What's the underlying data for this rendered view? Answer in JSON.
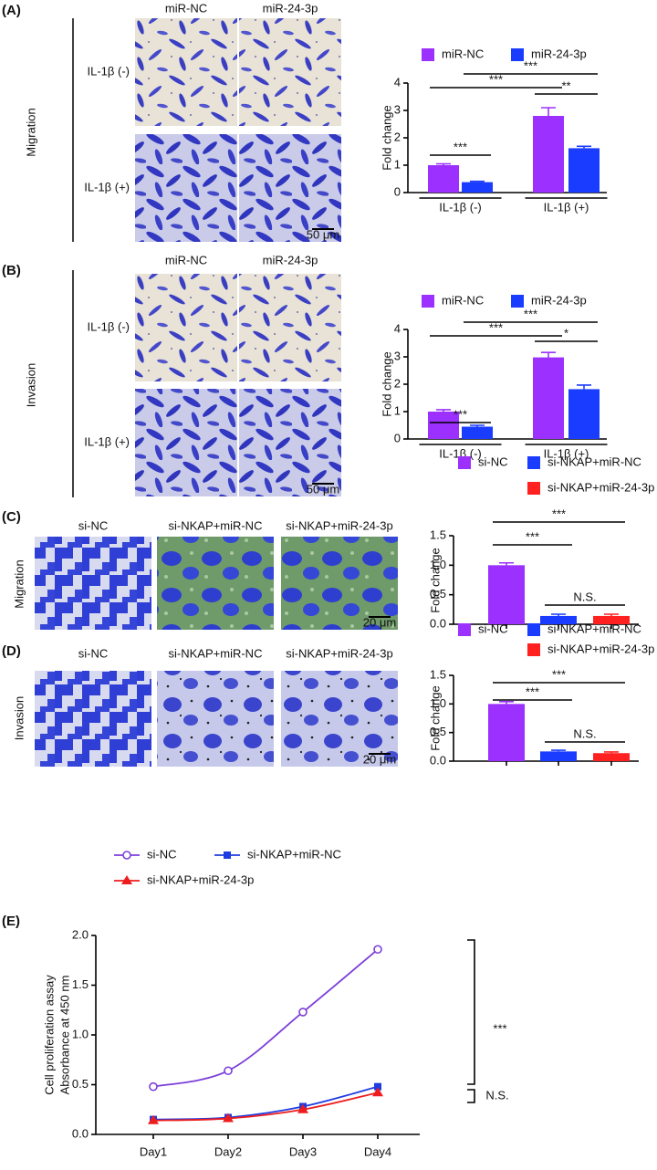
{
  "image_panels": [
    {
      "label": "(A)",
      "side_label": "Migration",
      "columns": [
        "miR-NC",
        "miR-24-3p"
      ],
      "rows": [
        "IL-1β (-)",
        "IL-1β (+)"
      ],
      "scale_bar": "50 μm"
    },
    {
      "label": "(B)",
      "side_label": "Invasion",
      "columns": [
        "miR-NC",
        "miR-24-3p"
      ],
      "rows": [
        "IL-1β (-)",
        "IL-1β (+)"
      ],
      "scale_bar": "50 μm"
    },
    {
      "label": "(C)",
      "side_label": "Migration",
      "columns": [
        "si-NC",
        "si-NKAP+miR-NC",
        "si-NKAP+miR-24-3p"
      ],
      "scale_bar": "20 μm"
    },
    {
      "label": "(D)",
      "side_label": "Invasion",
      "columns": [
        "si-NC",
        "si-NKAP+miR-NC",
        "si-NKAP+miR-24-3p"
      ],
      "scale_bar": "20 μm"
    }
  ],
  "chart_data": [
    {
      "type": "bar",
      "ylabel": "Fold change",
      "categories": [
        "IL-1β (-)",
        "IL-1β (+)"
      ],
      "series": [
        {
          "name": "miR-NC",
          "color": "#9b30ff",
          "values": [
            1.0,
            2.8
          ],
          "errors": [
            0.05,
            0.3
          ]
        },
        {
          "name": "miR-24-3p",
          "color": "#1a3cff",
          "values": [
            0.38,
            1.62
          ],
          "errors": [
            0.03,
            0.07
          ]
        }
      ],
      "ylim": [
        0,
        4
      ],
      "yticks": [
        0,
        1,
        2,
        3,
        4
      ],
      "annotations": [
        "***",
        "***",
        "***",
        "**"
      ]
    },
    {
      "type": "bar",
      "ylabel": "Fold change",
      "categories": [
        "IL-1β (-)",
        "IL-1β (+)"
      ],
      "series": [
        {
          "name": "miR-NC",
          "color": "#9b30ff",
          "values": [
            1.0,
            2.98
          ],
          "errors": [
            0.07,
            0.18
          ]
        },
        {
          "name": "miR-24-3p",
          "color": "#1a3cff",
          "values": [
            0.45,
            1.82
          ],
          "errors": [
            0.05,
            0.15
          ]
        }
      ],
      "ylim": [
        0,
        4
      ],
      "yticks": [
        0,
        1,
        2,
        3,
        4
      ],
      "annotations": [
        "***",
        "***",
        "***",
        "*"
      ]
    },
    {
      "type": "bar",
      "ylabel": "Fold change",
      "categories": [
        null
      ],
      "series": [
        {
          "name": "si-NC",
          "color": "#9b30ff",
          "values": [
            1.0
          ],
          "errors": [
            0.04
          ]
        },
        {
          "name": "si-NKAP+miR-NC",
          "color": "#1a3cff",
          "values": [
            0.14
          ],
          "errors": [
            0.03
          ]
        },
        {
          "name": "si-NKAP+miR-24-3p",
          "color": "#ff2020",
          "values": [
            0.14
          ],
          "errors": [
            0.03
          ]
        }
      ],
      "ylim": [
        0,
        1.5
      ],
      "yticks": [
        {
          "value": 0,
          "label": "0.0"
        },
        0.5,
        {
          "value": 1,
          "label": "1.0"
        },
        1.5
      ],
      "annotations": [
        "***",
        "***",
        "N.S."
      ]
    },
    {
      "type": "bar",
      "ylabel": "Fold change",
      "categories": [
        null
      ],
      "series": [
        {
          "name": "si-NC",
          "color": "#9b30ff",
          "values": [
            1.0
          ],
          "errors": [
            0.04
          ]
        },
        {
          "name": "si-NKAP+miR-NC",
          "color": "#1a3cff",
          "values": [
            0.17
          ],
          "errors": [
            0.02
          ]
        },
        {
          "name": "si-NKAP+miR-24-3p",
          "color": "#ff2020",
          "values": [
            0.14
          ],
          "errors": [
            0.02
          ]
        }
      ],
      "ylim": [
        0,
        1.5
      ],
      "yticks": [
        {
          "value": 0,
          "label": "0.0"
        },
        0.5,
        {
          "value": 1,
          "label": "1.0"
        },
        1.5
      ],
      "annotations": [
        "***",
        "***",
        "N.S."
      ]
    },
    {
      "type": "line",
      "panel_label": "(E)",
      "ylabel": [
        "Cell proliferation assay",
        "Absorbance at 450 nm"
      ],
      "categories": [
        "Day1",
        "Day2",
        "Day3",
        "Day4"
      ],
      "series": [
        {
          "name": "si-NC",
          "color": "#7b3fd9",
          "marker": "circle",
          "values": [
            0.48,
            0.64,
            1.23,
            1.86
          ]
        },
        {
          "name": "si-NKAP+miR-NC",
          "color": "#1f3ce0",
          "marker": "square",
          "values": [
            0.15,
            0.17,
            0.28,
            0.48
          ]
        },
        {
          "name": "si-NKAP+miR-24-3p",
          "color": "#ee1c1c",
          "marker": "triangle",
          "values": [
            0.14,
            0.16,
            0.25,
            0.42
          ]
        }
      ],
      "ylim": [
        0,
        2
      ],
      "yticks": [
        {
          "value": 0,
          "label": "0.0"
        },
        0.5,
        {
          "value": 1,
          "label": "1.0"
        },
        1.5,
        {
          "value": 2,
          "label": "2.0"
        }
      ],
      "annotations": [
        "***",
        "N.S."
      ]
    }
  ]
}
